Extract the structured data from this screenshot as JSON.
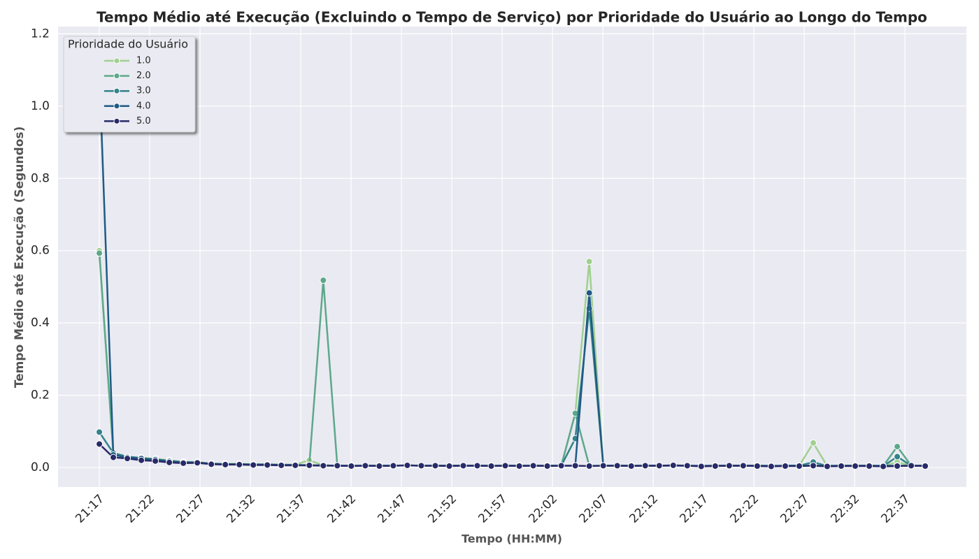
{
  "chart_data": {
    "type": "line",
    "title": "Tempo Médio até Execução (Excluindo o Tempo de Serviço) por Prioridade do Usuário ao Longo do Tempo",
    "x_label": "Tempo (HH:MM)",
    "y_label": "Tempo Médio até Execução (Segundos)",
    "legend_title": "Prioridade do Usuário",
    "legend_position": "upper-left",
    "grid": true,
    "x": [
      1277,
      1278.39,
      1279.78,
      1281.17,
      1282.56,
      1283.95,
      1285.34,
      1286.73,
      1288.12,
      1289.51,
      1290.9,
      1292.29,
      1293.68,
      1295.07,
      1296.46,
      1297.85,
      1299.24,
      1300.63,
      1302.02,
      1303.41,
      1304.8,
      1306.19,
      1307.58,
      1308.97,
      1310.36,
      1311.75,
      1313.14,
      1314.53,
      1315.92,
      1317.31,
      1318.7,
      1320.09,
      1321.48,
      1322.87,
      1324.26,
      1325.65,
      1327.04,
      1328.43,
      1329.82,
      1331.21,
      1332.6,
      1333.99,
      1335.38,
      1336.77,
      1338.16,
      1339.55,
      1340.94,
      1342.33,
      1343.72,
      1345.11,
      1346.5,
      1347.89,
      1349.28,
      1350.67,
      1352.06,
      1353.45,
      1354.84,
      1356.23,
      1357.62,
      1359.01
    ],
    "xlim": [
      1272.9,
      1363.1
    ],
    "xticks": [
      {
        "value": 1277,
        "label": "21:17"
      },
      {
        "value": 1282,
        "label": "21:22"
      },
      {
        "value": 1287,
        "label": "21:27"
      },
      {
        "value": 1292,
        "label": "21:32"
      },
      {
        "value": 1297,
        "label": "21:37"
      },
      {
        "value": 1302,
        "label": "21:42"
      },
      {
        "value": 1307,
        "label": "21:47"
      },
      {
        "value": 1312,
        "label": "21:52"
      },
      {
        "value": 1317,
        "label": "21:57"
      },
      {
        "value": 1322,
        "label": "22:02"
      },
      {
        "value": 1327,
        "label": "22:07"
      },
      {
        "value": 1332,
        "label": "22:12"
      },
      {
        "value": 1337,
        "label": "22:17"
      },
      {
        "value": 1342,
        "label": "22:22"
      },
      {
        "value": 1347,
        "label": "22:27"
      },
      {
        "value": 1352,
        "label": "22:32"
      },
      {
        "value": 1357,
        "label": "22:37"
      }
    ],
    "ylim": [
      -0.054,
      1.22
    ],
    "yticks": [
      {
        "value": 0,
        "label": "0.0"
      },
      {
        "value": 0.2,
        "label": "0.2"
      },
      {
        "value": 0.4,
        "label": "0.4"
      },
      {
        "value": 0.6,
        "label": "0.6"
      },
      {
        "value": 0.8,
        "label": "0.8"
      },
      {
        "value": 1,
        "label": "1.0"
      },
      {
        "value": 1.2,
        "label": "1.2"
      }
    ],
    "series": [
      {
        "name": "1.0",
        "color": "#a0d08f",
        "values": [
          0.6,
          0.04,
          0.03,
          0.027,
          0.024,
          0.02,
          0.016,
          0.015,
          0.011,
          0.01,
          0.01,
          0.009,
          0.009,
          0.008,
          0.008,
          0.02,
          0.006,
          0.005,
          0.005,
          0.005,
          0.005,
          0.005,
          0.006,
          0.005,
          0.005,
          0.005,
          0.005,
          0.005,
          0.005,
          0.005,
          0.005,
          0.005,
          0.005,
          0.005,
          0.15,
          0.57,
          0.005,
          0.005,
          0.005,
          0.005,
          0.005,
          0.006,
          0.005,
          0.004,
          0.005,
          0.005,
          0.005,
          0.005,
          0.004,
          0.005,
          0.005,
          0.068,
          0.004,
          0.005,
          0.005,
          0.005,
          0.004,
          0.015,
          0.005,
          0.005
        ]
      },
      {
        "name": "2.0",
        "color": "#5da88a",
        "values": [
          0.593,
          0.038,
          0.03,
          0.026,
          0.023,
          0.019,
          0.015,
          0.014,
          0.011,
          0.01,
          0.009,
          0.009,
          0.008,
          0.008,
          0.007,
          0.007,
          0.518,
          0.005,
          0.005,
          0.005,
          0.005,
          0.005,
          0.006,
          0.005,
          0.005,
          0.005,
          0.005,
          0.005,
          0.005,
          0.005,
          0.005,
          0.005,
          0.005,
          0.005,
          0.15,
          0.005,
          0.005,
          0.005,
          0.005,
          0.005,
          0.005,
          0.006,
          0.005,
          0.004,
          0.005,
          0.005,
          0.005,
          0.005,
          0.004,
          0.005,
          0.005,
          0.006,
          0.004,
          0.005,
          0.005,
          0.005,
          0.004,
          0.058,
          0.005,
          0.005
        ]
      },
      {
        "name": "3.0",
        "color": "#33838a",
        "values": [
          0.098,
          0.04,
          0.03,
          0.026,
          0.022,
          0.018,
          0.015,
          0.014,
          0.01,
          0.009,
          0.009,
          0.008,
          0.008,
          0.007,
          0.007,
          0.006,
          0.006,
          0.005,
          0.005,
          0.005,
          0.005,
          0.005,
          0.006,
          0.005,
          0.005,
          0.005,
          0.005,
          0.005,
          0.005,
          0.005,
          0.005,
          0.005,
          0.005,
          0.005,
          0.08,
          0.44,
          0.005,
          0.005,
          0.005,
          0.005,
          0.005,
          0.006,
          0.005,
          0.004,
          0.005,
          0.005,
          0.005,
          0.005,
          0.004,
          0.005,
          0.005,
          0.015,
          0.004,
          0.005,
          0.005,
          0.005,
          0.004,
          0.03,
          0.005,
          0.005
        ]
      },
      {
        "name": "4.0",
        "color": "#1f5a85",
        "values": [
          1.1,
          0.035,
          0.028,
          0.025,
          0.022,
          0.017,
          0.014,
          0.014,
          0.01,
          0.009,
          0.009,
          0.008,
          0.008,
          0.007,
          0.007,
          0.006,
          0.006,
          0.005,
          0.005,
          0.005,
          0.005,
          0.005,
          0.006,
          0.005,
          0.005,
          0.005,
          0.005,
          0.005,
          0.005,
          0.005,
          0.005,
          0.005,
          0.005,
          0.005,
          0.005,
          0.483,
          0.005,
          0.005,
          0.005,
          0.005,
          0.005,
          0.005,
          0.005,
          0.005,
          0.005,
          0.005,
          0.005,
          0.005,
          0.005,
          0.005,
          0.005,
          0.005,
          0.005,
          0.005,
          0.005,
          0.005,
          0.005,
          0.005,
          0.005,
          0.005
        ]
      },
      {
        "name": "5.0",
        "color": "#282b68",
        "values": [
          0.065,
          0.028,
          0.025,
          0.02,
          0.018,
          0.014,
          0.012,
          0.013,
          0.009,
          0.008,
          0.008,
          0.007,
          0.007,
          0.006,
          0.006,
          0.006,
          0.005,
          0.005,
          0.004,
          0.005,
          0.004,
          0.005,
          0.006,
          0.005,
          0.005,
          0.004,
          0.005,
          0.005,
          0.004,
          0.005,
          0.004,
          0.005,
          0.004,
          0.005,
          0.005,
          0.004,
          0.005,
          0.005,
          0.004,
          0.005,
          0.005,
          0.006,
          0.005,
          0.003,
          0.004,
          0.005,
          0.005,
          0.004,
          0.003,
          0.004,
          0.004,
          0.005,
          0.003,
          0.004,
          0.004,
          0.004,
          0.003,
          0.004,
          0.005,
          0.004
        ]
      }
    ]
  }
}
